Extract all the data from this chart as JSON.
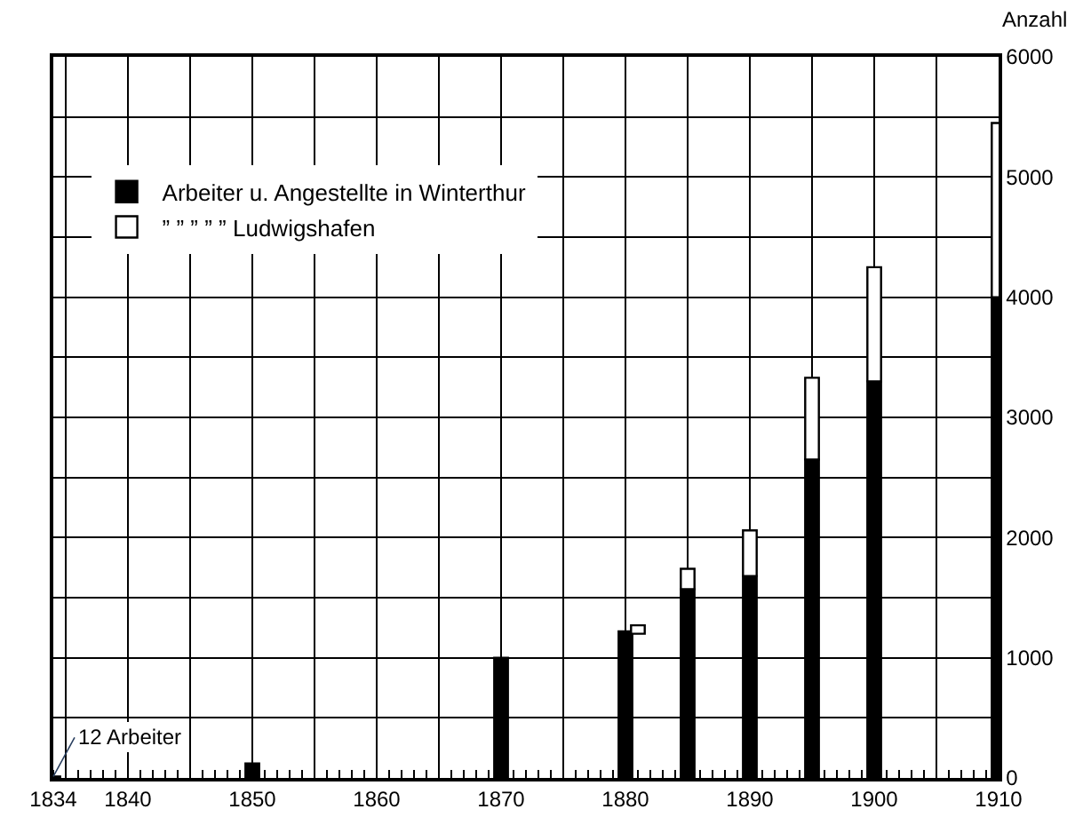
{
  "chart_data": {
    "type": "bar",
    "ylabel": "Anzahl",
    "x": [
      1834,
      1850,
      1870,
      1880,
      1885,
      1890,
      1895,
      1900,
      1910
    ],
    "series": [
      {
        "name": "Arbeiter u. Angestellte in Winterthur",
        "color": "#000000",
        "values": [
          12,
          120,
          1000,
          1220,
          1570,
          1680,
          2650,
          3300,
          4000
        ]
      },
      {
        "name": "” ” ” ” ” Ludwigshafen",
        "color": "#ffffff",
        "x": [
          1881,
          1885,
          1890,
          1895,
          1900,
          1910
        ],
        "base": [
          1200,
          1570,
          1680,
          2650,
          3300,
          4000
        ],
        "values": [
          70,
          170,
          380,
          680,
          950,
          1450
        ]
      }
    ],
    "annotations": [
      {
        "text": "12 Arbeiter",
        "x": 1834,
        "y": 12
      }
    ],
    "xlim": [
      1834,
      1910
    ],
    "xticks": [
      1834,
      {
        "value": 1835,
        "label": null
      },
      1840,
      {
        "value": 1845,
        "label": null
      },
      1850,
      {
        "value": 1855,
        "label": null
      },
      1860,
      {
        "value": 1865,
        "label": null
      },
      1870,
      {
        "value": 1875,
        "label": null
      },
      1880,
      {
        "value": 1885,
        "label": null
      },
      1890,
      {
        "value": 1895,
        "label": null
      },
      1900,
      {
        "value": 1905,
        "label": null
      },
      1910
    ],
    "ylim": [
      0,
      6000
    ],
    "yticks": [
      0,
      {
        "value": 500,
        "label": null
      },
      1000,
      {
        "value": 1500,
        "label": null
      },
      2000,
      {
        "value": 2500,
        "label": null
      },
      3000,
      {
        "value": 3500,
        "label": null
      },
      4000,
      {
        "value": 4500,
        "label": null
      },
      5000,
      {
        "value": 5500,
        "label": null
      },
      6000
    ],
    "grid": true,
    "legend": "top left"
  }
}
